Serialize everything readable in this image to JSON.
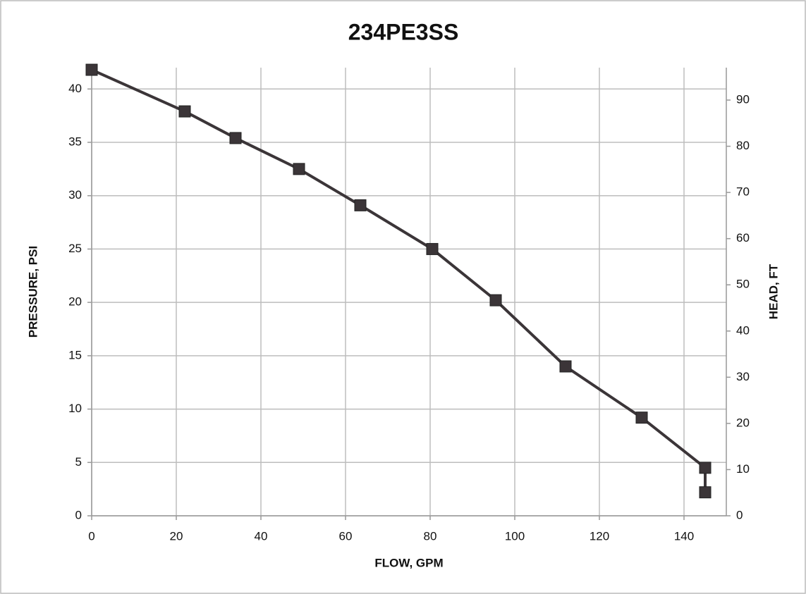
{
  "chart_data": {
    "type": "line",
    "title": "234PE3SS",
    "x_label": "FLOW, GPM",
    "y_label": "PRESSURE, PSI",
    "y2_label": "HEAD, FT",
    "x": [
      0,
      22,
      34,
      49,
      63.5,
      80.5,
      95.5,
      112,
      130,
      145,
      145
    ],
    "series": [
      {
        "name": "Pressure",
        "color": "#3b3538",
        "values": [
          41.8,
          37.9,
          35.4,
          32.5,
          29.1,
          25,
          20.2,
          14,
          9.2,
          4.5,
          2.2
        ]
      }
    ],
    "xlim": [
      0,
      150
    ],
    "xticks": [
      0,
      20,
      40,
      60,
      80,
      100,
      120,
      140
    ],
    "ylim": [
      0,
      42
    ],
    "yticks": [
      0,
      5,
      10,
      15,
      20,
      25,
      30,
      35,
      40
    ],
    "y2lim": [
      0,
      97.02
    ],
    "y2ticks": [
      0,
      10,
      20,
      30,
      40,
      50,
      60,
      70,
      80,
      90
    ],
    "grid": true
  }
}
